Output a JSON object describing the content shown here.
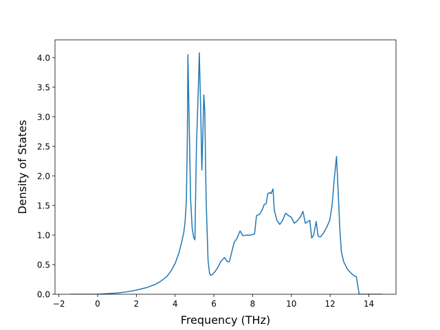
{
  "chart_data": {
    "type": "line",
    "title": "",
    "xlabel": "Frequency (THz)",
    "ylabel": "Density of States",
    "xlim": [
      -2.2,
      15.4
    ],
    "ylim": [
      0,
      4.3
    ],
    "xticks": [
      -2,
      0,
      2,
      4,
      6,
      8,
      10,
      12,
      14
    ],
    "xtick_labels": [
      "−2",
      "0",
      "2",
      "4",
      "6",
      "8",
      "10",
      "12",
      "14"
    ],
    "yticks": [
      0.0,
      0.5,
      1.0,
      1.5,
      2.0,
      2.5,
      3.0,
      3.5,
      4.0
    ],
    "ytick_labels": [
      "0.0",
      "0.5",
      "1.0",
      "1.5",
      "2.0",
      "2.5",
      "3.0",
      "3.5",
      "4.0"
    ],
    "grid": false,
    "line_color": "#1f77b4",
    "series": [
      {
        "x": [
          -1.4,
          -1.0,
          -0.5,
          0.0,
          0.5,
          1.0,
          1.5,
          2.0,
          2.5,
          3.0,
          3.3,
          3.6,
          3.8,
          4.0,
          4.2,
          4.35,
          4.45,
          4.52,
          4.58,
          4.63,
          4.66,
          4.72,
          4.8,
          4.88,
          4.95,
          5.02,
          5.1,
          5.18,
          5.25,
          5.32,
          5.38,
          5.43,
          5.48,
          5.53,
          5.6,
          5.7,
          5.78,
          5.85,
          5.92,
          6.05,
          6.2,
          6.35,
          6.55,
          6.7,
          6.8,
          6.95,
          7.05,
          7.2,
          7.35,
          7.5,
          7.7,
          7.9,
          8.1,
          8.2,
          8.35,
          8.5,
          8.6,
          8.7,
          8.78,
          8.88,
          8.95,
          9.05,
          9.12,
          9.25,
          9.4,
          9.55,
          9.7,
          9.85,
          10.0,
          10.15,
          10.3,
          10.45,
          10.6,
          10.72,
          10.82,
          10.95,
          11.05,
          11.15,
          11.28,
          11.38,
          11.5,
          11.65,
          11.82,
          11.98,
          12.1,
          12.2,
          12.33,
          12.42,
          12.5,
          12.58,
          12.7,
          12.9,
          13.1,
          13.25,
          13.35,
          13.5,
          13.8,
          14.1,
          14.4,
          14.7
        ],
        "y": [
          0.0,
          0.0,
          0.0,
          0.0,
          0.01,
          0.02,
          0.04,
          0.07,
          0.11,
          0.17,
          0.23,
          0.31,
          0.4,
          0.52,
          0.7,
          0.9,
          1.05,
          1.25,
          1.6,
          2.6,
          4.05,
          3.0,
          1.6,
          1.12,
          0.97,
          0.92,
          2.5,
          3.3,
          4.08,
          3.1,
          2.1,
          2.7,
          3.37,
          3.1,
          1.6,
          0.57,
          0.35,
          0.32,
          0.33,
          0.38,
          0.45,
          0.55,
          0.62,
          0.55,
          0.55,
          0.75,
          0.88,
          0.95,
          1.07,
          0.99,
          1.0,
          1.0,
          1.02,
          1.33,
          1.35,
          1.43,
          1.52,
          1.53,
          1.7,
          1.72,
          1.7,
          1.78,
          1.42,
          1.25,
          1.18,
          1.25,
          1.37,
          1.33,
          1.3,
          1.2,
          1.24,
          1.3,
          1.4,
          1.2,
          1.22,
          1.25,
          0.95,
          1.0,
          1.23,
          0.98,
          0.97,
          1.03,
          1.13,
          1.25,
          1.5,
          1.9,
          2.33,
          1.7,
          1.1,
          0.72,
          0.55,
          0.42,
          0.35,
          0.31,
          0.3,
          0.0,
          0.0,
          0.0,
          0.0,
          0.0
        ]
      }
    ]
  }
}
